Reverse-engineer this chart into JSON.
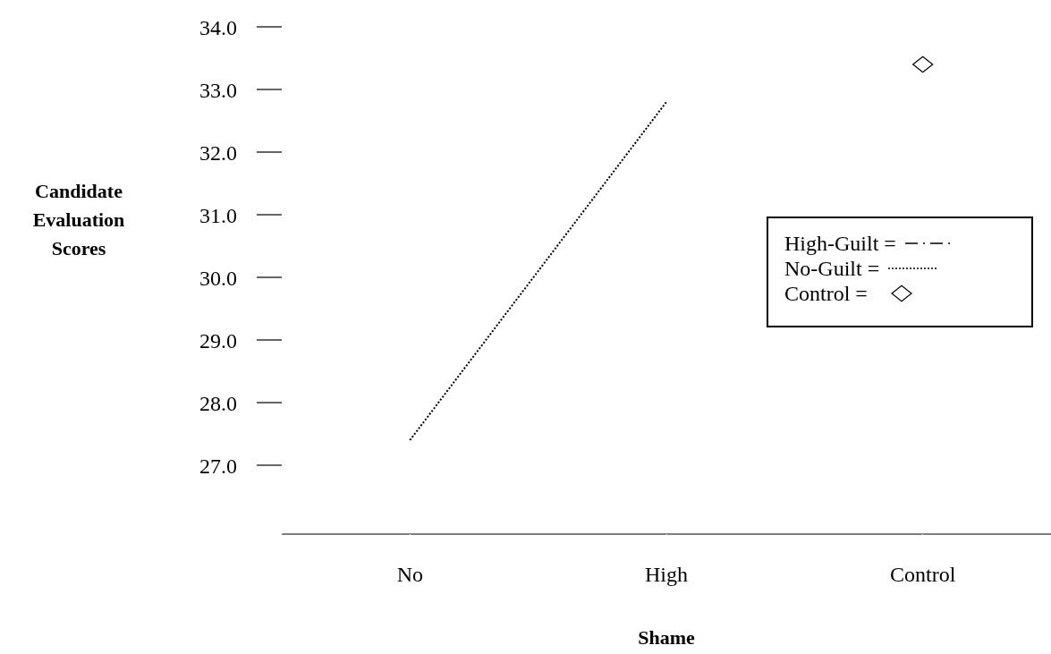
{
  "chart_data": {
    "type": "line",
    "xlabel": "Shame",
    "ylabel": "Candidate Evaluation Scores",
    "categories": [
      "No",
      "High",
      "Control"
    ],
    "series": [
      {
        "name": "High-Guilt =",
        "color": "#000000",
        "line_style": "dashed",
        "values": [
          null,
          null,
          null
        ]
      },
      {
        "name": "No-Guilt =",
        "color": "#000000",
        "line_style": "dotted",
        "values": [
          27.4,
          32.8,
          null
        ]
      },
      {
        "name": "Control =",
        "type": "scatter",
        "marker": "diamond",
        "color": "#000000",
        "values": [
          null,
          null,
          33.4
        ]
      }
    ],
    "ylim": [
      25.9,
      34.4
    ],
    "yticks": [
      {
        "value": 27,
        "label": "27.0"
      },
      {
        "value": 28,
        "label": "28.0"
      },
      {
        "value": 29,
        "label": "29.0"
      },
      {
        "value": 30,
        "label": "30.0"
      },
      {
        "value": 31,
        "label": "31.0"
      },
      {
        "value": 32,
        "label": "32.0"
      },
      {
        "value": 33,
        "label": "33.0"
      },
      {
        "value": 34,
        "label": "34.0"
      }
    ],
    "grid": false,
    "legend": "right"
  }
}
